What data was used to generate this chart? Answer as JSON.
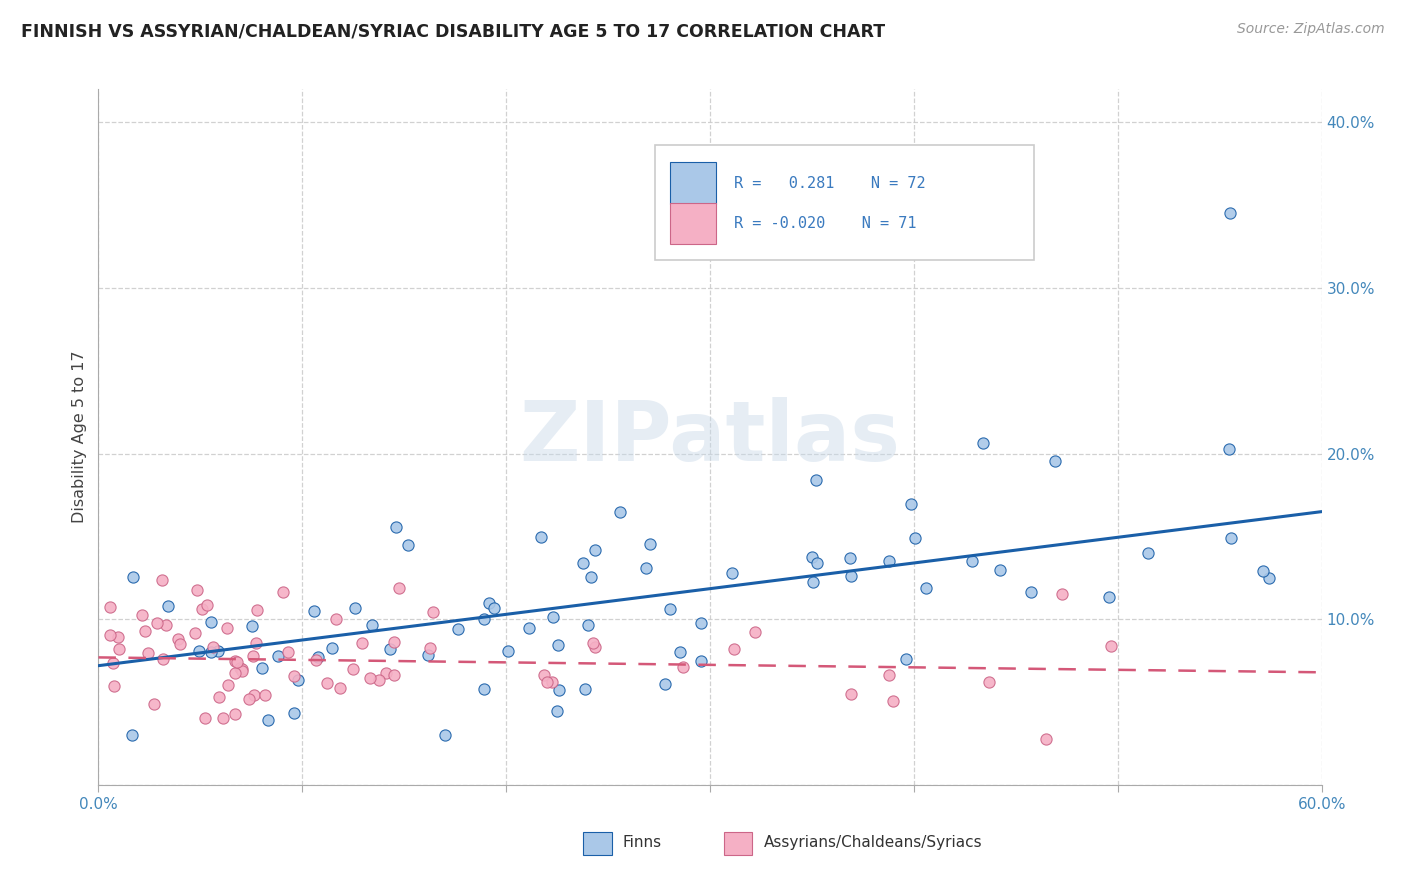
{
  "title": "FINNISH VS ASSYRIAN/CHALDEAN/SYRIAC DISABILITY AGE 5 TO 17 CORRELATION CHART",
  "source": "Source: ZipAtlas.com",
  "ylabel": "Disability Age 5 to 17",
  "xlim": [
    0.0,
    0.6
  ],
  "ylim": [
    0.0,
    0.42
  ],
  "color_finns": "#aac8e8",
  "color_assyrians": "#f5b0c5",
  "color_finn_line": "#1a5fa8",
  "color_finn_edge": "#1a5fa8",
  "color_assyrian_line": "#d45878",
  "color_assyrian_edge": "#cc6688",
  "legend_text_color": "#3a7abf",
  "tick_color": "#4488bb",
  "finn_trend": [
    0.0,
    0.6,
    0.072,
    0.165
  ],
  "assyrian_trend": [
    0.0,
    0.6,
    0.077,
    0.068
  ],
  "watermark_color": "#c8d8e8",
  "grid_color": "#cccccc",
  "bg_color": "#ffffff"
}
